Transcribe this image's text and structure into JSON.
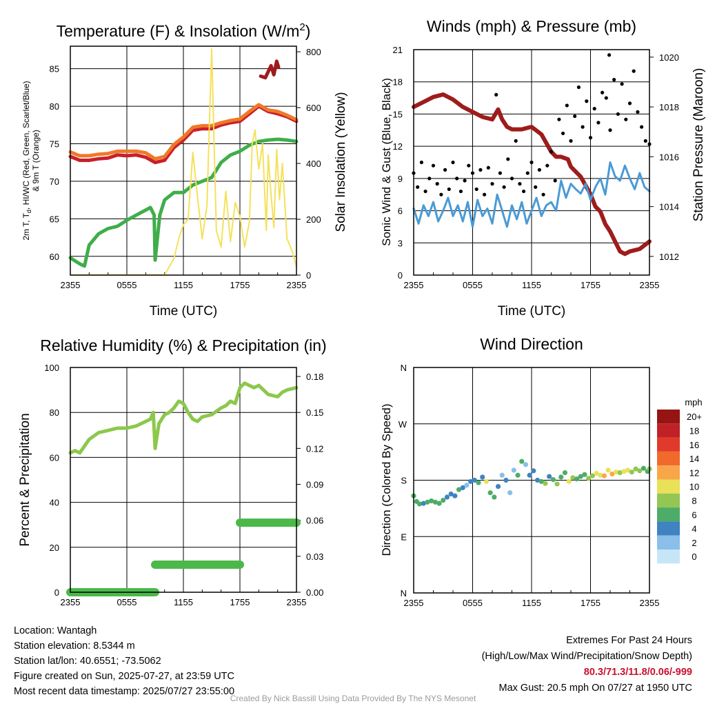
{
  "colors": {
    "red": "#c8202a",
    "orange": "#f07828",
    "green": "#3fae49",
    "yellow": "#f5e15a",
    "maroon": "#9e1c1c",
    "blue": "#4a9ad6",
    "black": "#000000",
    "rh": "#8cc84b",
    "precip": "#4cb84a"
  },
  "chart_data": [
    {
      "type": "line",
      "title": "Temperature (F) & Insolation (W/m²)",
      "title_main": "Temperature (F) & Insolation (W/m",
      "title_sup": "2",
      "title_end": ")",
      "xlabel": "Time (UTC)",
      "ylabel_lines": [
        "2m T, T",
        "d",
        ", HI/WC (Red, Green, Scarlet/Blue)",
        "& 9m T (Orange)"
      ],
      "ylabel_right": "Solar Insolation (Yellow)",
      "x_ticks": [
        "2355",
        "0555",
        "1155",
        "1755",
        "2355"
      ],
      "ylim": [
        57.5,
        88
      ],
      "yticks": [
        60,
        65,
        70,
        75,
        80,
        85
      ],
      "y2lim": [
        0,
        820
      ],
      "y2ticks": [
        0,
        200,
        400,
        600,
        800
      ],
      "grid": true,
      "series": [
        {
          "name": "2m T",
          "color": "#c8202a",
          "x": [
            0,
            1,
            2,
            3,
            4,
            5,
            6,
            7,
            8,
            9,
            10,
            11,
            12,
            13,
            14,
            15,
            16,
            17,
            18,
            19,
            20,
            21,
            22,
            23,
            24
          ],
          "values": [
            73.3,
            72.8,
            72.8,
            73.0,
            73.1,
            73.5,
            73.4,
            73.5,
            73.2,
            72.5,
            72.8,
            74.5,
            75.5,
            76.8,
            77.0,
            77.0,
            77.5,
            77.8,
            78.0,
            79.0,
            80.0,
            79.3,
            79.0,
            78.6,
            78.0
          ]
        },
        {
          "name": "9m T",
          "color": "#f07828",
          "x": [
            0,
            1,
            2,
            3,
            4,
            5,
            6,
            7,
            8,
            9,
            10,
            11,
            12,
            13,
            14,
            15,
            16,
            17,
            18,
            19,
            20,
            21,
            22,
            23,
            24
          ],
          "values": [
            73.9,
            73.4,
            73.4,
            73.6,
            73.7,
            74.0,
            74.0,
            74.0,
            73.8,
            73.0,
            73.3,
            74.9,
            75.9,
            77.2,
            77.4,
            77.4,
            77.8,
            78.1,
            78.3,
            79.3,
            80.2,
            79.5,
            79.3,
            78.8,
            78.2
          ]
        },
        {
          "name": "Td",
          "color": "#3fae49",
          "x": [
            0,
            1,
            1.5,
            2,
            3,
            4,
            5,
            6,
            7,
            8.5,
            8.9,
            9,
            9.5,
            10,
            10.5,
            11,
            12,
            13,
            14,
            15,
            16,
            17,
            18,
            19,
            20,
            21,
            22,
            23,
            24
          ],
          "values": [
            59.8,
            59.0,
            58.7,
            61.5,
            63.0,
            63.7,
            64.0,
            64.8,
            65.5,
            66.5,
            65.5,
            59.5,
            65.5,
            67.5,
            68.0,
            68.5,
            68.5,
            69.5,
            70.0,
            70.5,
            72.5,
            73.5,
            74.0,
            74.8,
            75.3,
            75.5,
            75.6,
            75.5,
            75.3
          ]
        },
        {
          "name": "HI",
          "color": "#9e1c1c",
          "x": [
            20.2,
            20.7,
            21.0,
            21.3,
            21.6,
            21.9,
            22.1
          ],
          "values": [
            84.0,
            83.8,
            84.6,
            85.4,
            84.2,
            86.0,
            85.2
          ]
        },
        {
          "name": "Solar",
          "color": "#f5e15a",
          "axis": "right",
          "x": [
            0,
            4,
            8,
            10,
            11,
            11.5,
            12,
            12.5,
            13,
            13.5,
            14,
            14.5,
            15,
            15.5,
            16,
            16.5,
            17,
            17.5,
            18,
            18.5,
            19,
            19.3,
            19.6,
            20,
            20.4,
            20.8,
            21,
            21.3,
            21.6,
            21.9,
            22.2,
            22.5,
            23,
            23.5,
            24
          ],
          "values": [
            0,
            0,
            0,
            0,
            60,
            130,
            180,
            200,
            440,
            280,
            130,
            250,
            810,
            160,
            100,
            300,
            120,
            260,
            210,
            100,
            190,
            470,
            520,
            380,
            470,
            160,
            430,
            290,
            170,
            450,
            270,
            400,
            130,
            90,
            30
          ]
        }
      ]
    },
    {
      "type": "line",
      "title": "Winds (mph) & Pressure (mb)",
      "xlabel": "Time (UTC)",
      "ylabel": "Sonic Wind & Gust (Blue, Black)",
      "ylabel_right": "Station Pressure (Maroon)",
      "x_ticks": [
        "2355",
        "0555",
        "1155",
        "1755",
        "2355"
      ],
      "ylim": [
        0,
        21
      ],
      "yticks": [
        0,
        3,
        6,
        9,
        12,
        15,
        18,
        21
      ],
      "y2lim": [
        1011.25,
        1020.3
      ],
      "y2ticks": [
        1012,
        1014,
        1016,
        1018,
        1020
      ],
      "grid": true,
      "series": [
        {
          "name": "Pressure",
          "color": "#9e1c1c",
          "axis": "right",
          "x": [
            0,
            1,
            2,
            3,
            4,
            5,
            6,
            7,
            8,
            8.6,
            9,
            9.5,
            10,
            11,
            12,
            13,
            14,
            14.5,
            15,
            15.7,
            16,
            17,
            18,
            18.5,
            19,
            19.5,
            20,
            20.5,
            21,
            21.5,
            22,
            23,
            24
          ],
          "values": [
            1018.0,
            1018.2,
            1018.4,
            1018.5,
            1018.3,
            1018.0,
            1017.8,
            1017.6,
            1017.5,
            1017.9,
            1017.5,
            1017.2,
            1017.1,
            1017.1,
            1017.2,
            1016.9,
            1016.2,
            1016.0,
            1016.0,
            1015.9,
            1015.6,
            1015.2,
            1014.5,
            1014.0,
            1013.8,
            1013.3,
            1013.0,
            1012.6,
            1012.2,
            1012.1,
            1012.2,
            1012.3,
            1012.6
          ]
        },
        {
          "name": "Sonic Wind",
          "color": "#4a9ad6",
          "x": [
            0,
            0.5,
            1,
            1.5,
            2,
            2.5,
            3,
            3.5,
            4,
            4.5,
            5,
            5.5,
            6,
            6.5,
            7,
            7.5,
            8,
            8.5,
            9,
            9.5,
            10,
            10.5,
            11,
            11.5,
            12,
            12.5,
            13,
            13.5,
            14,
            14.5,
            15,
            15.5,
            16,
            16.5,
            17,
            17.5,
            18,
            18.5,
            19,
            19.5,
            20,
            20.5,
            21,
            21.5,
            22,
            22.5,
            23,
            23.5,
            24
          ],
          "values": [
            6.2,
            4.8,
            6.5,
            5.5,
            6.8,
            5.0,
            6.0,
            7.2,
            5.5,
            6.5,
            5.0,
            6.8,
            4.5,
            7.0,
            5.5,
            6.2,
            4.8,
            7.5,
            6.0,
            4.5,
            6.5,
            5.2,
            6.8,
            4.8,
            6.0,
            7.2,
            5.5,
            6.5,
            6.8,
            6.0,
            8.8,
            7.2,
            8.5,
            8.0,
            7.6,
            8.5,
            7.0,
            8.2,
            9.0,
            7.5,
            10.5,
            9.2,
            8.8,
            10.2,
            9.0,
            8.0,
            9.5,
            8.2,
            7.8
          ]
        },
        {
          "name": "Gust",
          "color": "#000000",
          "x": [
            0,
            0.4,
            0.8,
            1.2,
            1.6,
            2,
            2.4,
            2.8,
            3.2,
            3.6,
            4,
            4.4,
            4.8,
            5.2,
            5.6,
            6,
            6.4,
            6.8,
            7.2,
            7.6,
            8,
            8.4,
            8.8,
            9.2,
            9.6,
            10,
            10.4,
            10.8,
            11.2,
            11.6,
            12,
            12.4,
            12.8,
            13.2,
            13.6,
            14,
            14.4,
            14.8,
            15.2,
            15.6,
            16,
            16.4,
            16.8,
            17.2,
            17.6,
            18,
            18.4,
            18.8,
            19.2,
            19.6,
            20,
            20.4,
            20.8,
            21.2,
            21.6,
            22,
            22.4,
            22.8,
            23.2,
            23.6,
            24
          ],
          "values": [
            9.5,
            8.2,
            10.5,
            7.8,
            9.0,
            10.2,
            8.5,
            7.5,
            9.8,
            8.0,
            10.5,
            9.0,
            7.8,
            8.8,
            10.2,
            9.5,
            8.0,
            9.8,
            7.5,
            10.0,
            8.5,
            16.8,
            9.5,
            8.2,
            10.8,
            9.0,
            12.5,
            8.5,
            7.8,
            9.5,
            10.5,
            8.2,
            9.8,
            7.5,
            10.2,
            11.5,
            8.8,
            14.5,
            13.2,
            15.8,
            12.5,
            14.8,
            17.5,
            13.8,
            16.2,
            12.8,
            15.5,
            14.2,
            17.0,
            16.5,
            13.5,
            18.2,
            15.0,
            17.8,
            14.5,
            16.0,
            19.0,
            15.2,
            13.8,
            12.5,
            12.2
          ]
        },
        {
          "name": "Max Gust",
          "color": "#000000",
          "x": [
            19.9
          ],
          "values": [
            20.5
          ]
        }
      ]
    },
    {
      "type": "line",
      "title": "Relative Humidity (%) & Precipitation (in)",
      "ylabel": "Percent & Precipitation",
      "x_ticks": [
        "2355",
        "0555",
        "1155",
        "1755",
        "2355"
      ],
      "ylim": [
        0,
        100
      ],
      "yticks": [
        0,
        20,
        40,
        60,
        80,
        100
      ],
      "y2lim": [
        0,
        0.1875
      ],
      "y2ticks": [
        "0.00",
        "0.03",
        "0.06",
        "0.09",
        "0.12",
        "0.15",
        "0.18"
      ],
      "grid": true,
      "series": [
        {
          "name": "RH",
          "color": "#8cc84b",
          "x": [
            0,
            0.5,
            1,
            1.5,
            2,
            3,
            4,
            5,
            6,
            7,
            8,
            8.5,
            8.8,
            9,
            9.4,
            10,
            10.5,
            11,
            11.5,
            12,
            12.5,
            13,
            13.5,
            14,
            15,
            16,
            16.5,
            17,
            17.5,
            18,
            18.5,
            19,
            19.5,
            20,
            21,
            22,
            22.5,
            23,
            24
          ],
          "values": [
            62,
            63,
            62,
            65,
            68,
            71,
            72,
            73,
            73,
            74,
            76,
            77,
            80,
            64,
            75,
            79,
            80,
            82,
            85,
            84,
            80,
            77,
            76,
            78,
            79,
            82,
            83,
            85,
            84,
            91,
            93,
            92,
            91,
            92,
            88,
            87,
            89,
            90,
            91
          ]
        },
        {
          "name": "Precipitation",
          "color": "#4cb84a",
          "axis": "right",
          "x": [
            0,
            9,
            9,
            18,
            18,
            24
          ],
          "values": [
            0,
            0,
            0.023,
            0.023,
            0.058,
            0.058
          ]
        }
      ]
    },
    {
      "type": "scatter",
      "title": "Wind Direction",
      "ylabel": "Direction (Colored By Speed)",
      "x_ticks": [
        "2355",
        "0555",
        "1155",
        "1755",
        "2355"
      ],
      "y_ticks": [
        "N",
        "E",
        "S",
        "W",
        "N"
      ],
      "ylim": [
        0,
        360
      ],
      "grid": true,
      "legend": {
        "title": "mph",
        "labels": [
          "20+",
          "18",
          "16",
          "14",
          "12",
          "10",
          "8",
          "6",
          "4",
          "2",
          "0"
        ],
        "colors": [
          "#961414",
          "#c02126",
          "#e03a2a",
          "#f06a2c",
          "#f9a64a",
          "#e9e157",
          "#94c653",
          "#4dac67",
          "#3f83c2",
          "#89bfe8",
          "#c6e6f8"
        ]
      },
      "series": [
        {
          "name": "Direction",
          "x": [
            0,
            0.3,
            0.6,
            1,
            1.4,
            1.8,
            2.2,
            2.6,
            3,
            3.4,
            3.8,
            4.2,
            4.6,
            5,
            5.4,
            5.8,
            6.2,
            6.6,
            7,
            7.4,
            7.8,
            8.2,
            8.6,
            9,
            9.4,
            9.8,
            10.2,
            10.6,
            11,
            11.4,
            11.8,
            12.2,
            12.6,
            13,
            13.4,
            13.8,
            14.2,
            14.6,
            15,
            15.4,
            15.8,
            16.2,
            16.6,
            17,
            17.4,
            17.8,
            18.2,
            18.6,
            19,
            19.4,
            19.8,
            20.2,
            20.6,
            21,
            21.4,
            21.8,
            22.2,
            22.6,
            23,
            23.4,
            23.8,
            24
          ],
          "values": [
            155,
            146,
            142,
            143,
            145,
            147,
            145,
            143,
            148,
            153,
            158,
            155,
            165,
            168,
            172,
            178,
            180,
            176,
            185,
            178,
            160,
            153,
            170,
            188,
            180,
            160,
            196,
            188,
            210,
            205,
            188,
            195,
            180,
            178,
            175,
            186,
            181,
            174,
            185,
            192,
            178,
            184,
            182,
            186,
            189,
            183,
            187,
            191,
            188,
            187,
            196,
            190,
            193,
            192,
            194,
            196,
            193,
            198,
            195,
            199,
            194,
            198
          ],
          "speed": [
            7,
            6,
            6,
            5,
            6,
            7,
            6,
            6,
            6,
            5,
            5,
            4,
            6,
            4,
            3,
            4,
            5,
            6,
            4,
            10,
            7,
            6,
            4,
            3,
            5,
            3,
            2,
            6,
            7,
            3,
            4,
            5,
            4,
            6,
            8,
            5,
            7,
            9,
            6,
            7,
            10,
            8,
            7,
            7,
            6,
            9,
            8,
            10,
            11,
            12,
            11,
            12,
            10,
            9,
            10,
            11,
            9,
            8,
            8,
            7,
            6,
            8
          ]
        }
      ]
    }
  ],
  "info_left": {
    "location": "Location: Wantagh",
    "elevation": "Station elevation: 8.5344 m",
    "latlon": "Station lat/lon: 40.6551; -73.5062",
    "created": "Figure created on Sun, 2025-07-27, at 23:59 UTC",
    "recent": "Most recent data timestamp: 2025/07/27 23:55:00"
  },
  "info_right": {
    "title": "Extremes For Past 24 Hours",
    "subtitle": "(High/Low/Max Wind/Precipitation/Snow Depth)",
    "values": "80.3/71.3/11.8/0.06/-999",
    "gust": "Max Gust: 20.5 mph On 07/27 at 1950 UTC"
  },
  "credit": "Created By Nick Bassill Using Data Provided By The NYS Mesonet"
}
